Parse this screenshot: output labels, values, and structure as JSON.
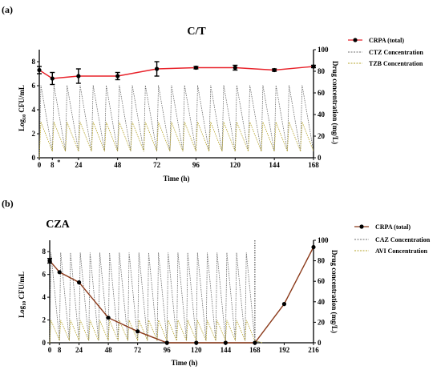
{
  "chart_data": [
    {
      "panel": "(a)",
      "type": "line",
      "title": "C/T",
      "xlabel": "Time (h)",
      "ylabel_left": "Log10 CFU/mL",
      "ylabel_left_main": "Log",
      "ylabel_left_sub": "10",
      "ylabel_left_rest": " CFU/mL",
      "ylabel_right": "Drug concentration (mg/L)",
      "xlim": [
        0,
        168
      ],
      "ylim_left": [
        0,
        9
      ],
      "ylim_right": [
        0,
        100
      ],
      "x_ticks": [
        0,
        8,
        24,
        48,
        72,
        96,
        120,
        144,
        168
      ],
      "y_ticks_left": [
        0,
        2,
        4,
        6,
        8
      ],
      "y_ticks_right": [
        0,
        20,
        40,
        60,
        80,
        100
      ],
      "annotation": "*",
      "colors": {
        "crpa": "#e8222a",
        "drug1": "#6d6d6d",
        "drug2": "#b5a32a"
      },
      "series": [
        {
          "name": "CRPA (total)",
          "x": [
            0,
            8,
            24,
            48,
            72,
            96,
            120,
            144,
            168
          ],
          "y": [
            7.3,
            6.6,
            6.8,
            6.8,
            7.4,
            7.5,
            7.5,
            7.3,
            7.6
          ],
          "err": [
            0.3,
            0.5,
            0.6,
            0.3,
            0.6,
            0.1,
            0.2,
            0.1,
            0.1
          ]
        },
        {
          "name": "CTZ Concentration",
          "peak": 67,
          "trough": 6,
          "period": 8,
          "first_peak": 1
        },
        {
          "name": "TZB Concentration",
          "peak": 33,
          "trough": 6,
          "period": 8,
          "first_peak": 1
        }
      ]
    },
    {
      "panel": "(b)",
      "type": "line",
      "title": "CZA",
      "xlabel": "Time (h)",
      "ylabel_left": "Log10 CFU/mL",
      "ylabel_left_main": "Log",
      "ylabel_left_sub": "10",
      "ylabel_left_rest": " CFU/mL",
      "ylabel_right": "Drug concentration (mg/L)",
      "xlim": [
        0,
        216
      ],
      "ylim_left": [
        0,
        9
      ],
      "ylim_right": [
        0,
        100
      ],
      "x_ticks": [
        0,
        8,
        24,
        48,
        72,
        96,
        120,
        144,
        168,
        192,
        216
      ],
      "y_ticks_left": [
        0,
        2,
        4,
        6,
        8
      ],
      "y_ticks_right": [
        0,
        20,
        40,
        60,
        80,
        100
      ],
      "vline_x": 168,
      "colors": {
        "crpa": "#8b3a1a",
        "drug1": "#6d6d6d",
        "drug2": "#b5a32a"
      },
      "series": [
        {
          "name": "CRPA (total)",
          "x": [
            0,
            8,
            24,
            48,
            72,
            96,
            120,
            144,
            168,
            192,
            216
          ],
          "y": [
            7.2,
            6.2,
            5.3,
            2.2,
            1.0,
            0,
            0,
            0,
            0,
            3.4,
            8.4
          ],
          "err": [
            0.2,
            0,
            0,
            0,
            0,
            0,
            0,
            0,
            0,
            0,
            0
          ]
        },
        {
          "name": "CAZ Concentration",
          "peak": 88,
          "trough": 2,
          "period": 8,
          "first_peak": 1,
          "end": 168
        },
        {
          "name": "AVI Concentration",
          "peak": 22,
          "trough": 2,
          "period": 8,
          "first_peak": 1,
          "end": 168
        }
      ]
    }
  ]
}
